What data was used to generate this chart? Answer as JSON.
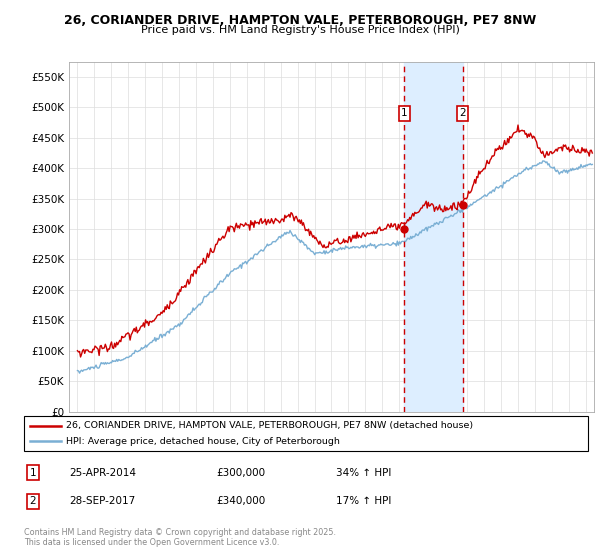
{
  "title": "26, CORIANDER DRIVE, HAMPTON VALE, PETERBOROUGH, PE7 8NW",
  "subtitle": "Price paid vs. HM Land Registry's House Price Index (HPI)",
  "ylabel_ticks": [
    "£0",
    "£50K",
    "£100K",
    "£150K",
    "£200K",
    "£250K",
    "£300K",
    "£350K",
    "£400K",
    "£450K",
    "£500K",
    "£550K"
  ],
  "ylim": [
    0,
    575000
  ],
  "yticks": [
    0,
    50000,
    100000,
    150000,
    200000,
    250000,
    300000,
    350000,
    400000,
    450000,
    500000,
    550000
  ],
  "xlim_start": 1994.5,
  "xlim_end": 2025.5,
  "sale1_year": 2014.31,
  "sale2_year": 2017.74,
  "sale1_price": 300000,
  "sale2_price": 340000,
  "sale1_label": "25-APR-2014",
  "sale2_label": "28-SEP-2017",
  "sale1_hpi": "34% ↑ HPI",
  "sale2_hpi": "17% ↑ HPI",
  "red_color": "#cc0000",
  "blue_color": "#7aafd4",
  "shade_color": "#ddeeff",
  "legend_line1": "26, CORIANDER DRIVE, HAMPTON VALE, PETERBOROUGH, PE7 8NW (detached house)",
  "legend_line2": "HPI: Average price, detached house, City of Peterborough",
  "footer": "Contains HM Land Registry data © Crown copyright and database right 2025.\nThis data is licensed under the Open Government Licence v3.0.",
  "background_color": "#ffffff"
}
